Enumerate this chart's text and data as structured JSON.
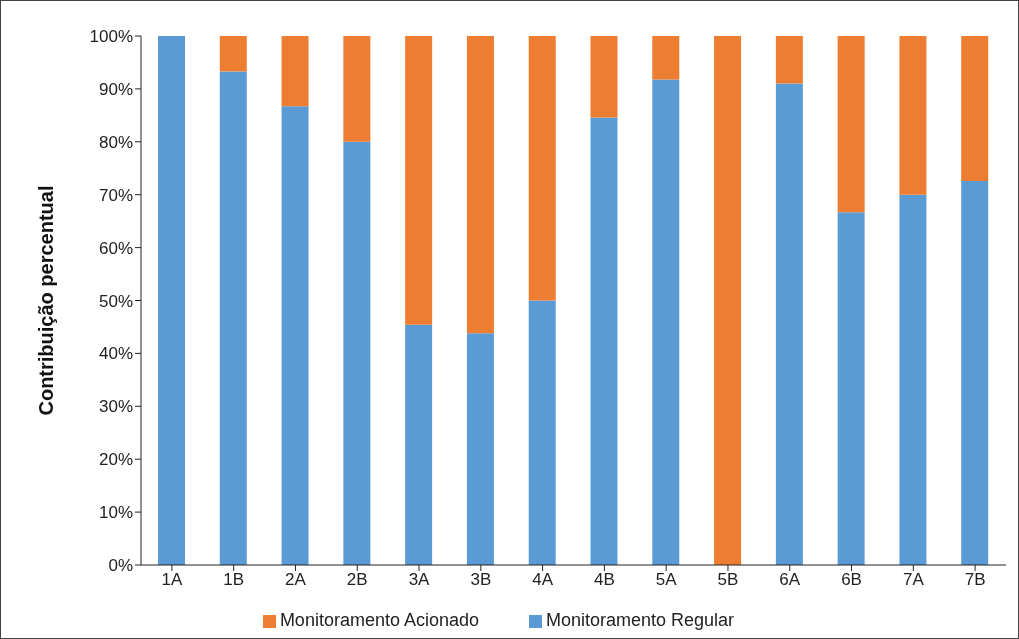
{
  "chart_data": {
    "type": "bar",
    "stacked": true,
    "ylabel": "Contribuição percentual",
    "categories": [
      "1A",
      "1B",
      "2A",
      "2B",
      "3A",
      "3B",
      "4A",
      "4B",
      "5A",
      "5B",
      "6A",
      "6B",
      "7A",
      "7B"
    ],
    "series": [
      {
        "name": "Monitoramento Regular",
        "color": "#5b9bd5",
        "values": [
          100,
          93.3,
          86.7,
          80,
          45.4,
          43.8,
          50,
          84.6,
          91.8,
          0,
          91,
          66.7,
          70,
          72.6
        ]
      },
      {
        "name": "Monitoramento Acionado",
        "color": "#ed7d31",
        "values": [
          0,
          6.7,
          13.3,
          20,
          54.6,
          56.2,
          50,
          15.4,
          8.2,
          100,
          9,
          33.3,
          30,
          27.4
        ]
      }
    ],
    "ylim": [
      0,
      100
    ],
    "yticks": [
      {
        "value": 0,
        "label": "0%"
      },
      {
        "value": 10,
        "label": "10%"
      },
      {
        "value": 20,
        "label": "20%"
      },
      {
        "value": 30,
        "label": "30%"
      },
      {
        "value": 40,
        "label": "40%"
      },
      {
        "value": 50,
        "label": "50%"
      },
      {
        "value": 60,
        "label": "60%"
      },
      {
        "value": 70,
        "label": "70%"
      },
      {
        "value": 80,
        "label": "80%"
      },
      {
        "value": 90,
        "label": "90%"
      },
      {
        "value": 100,
        "label": "100%"
      }
    ],
    "grid": false,
    "legend": "bottom"
  }
}
